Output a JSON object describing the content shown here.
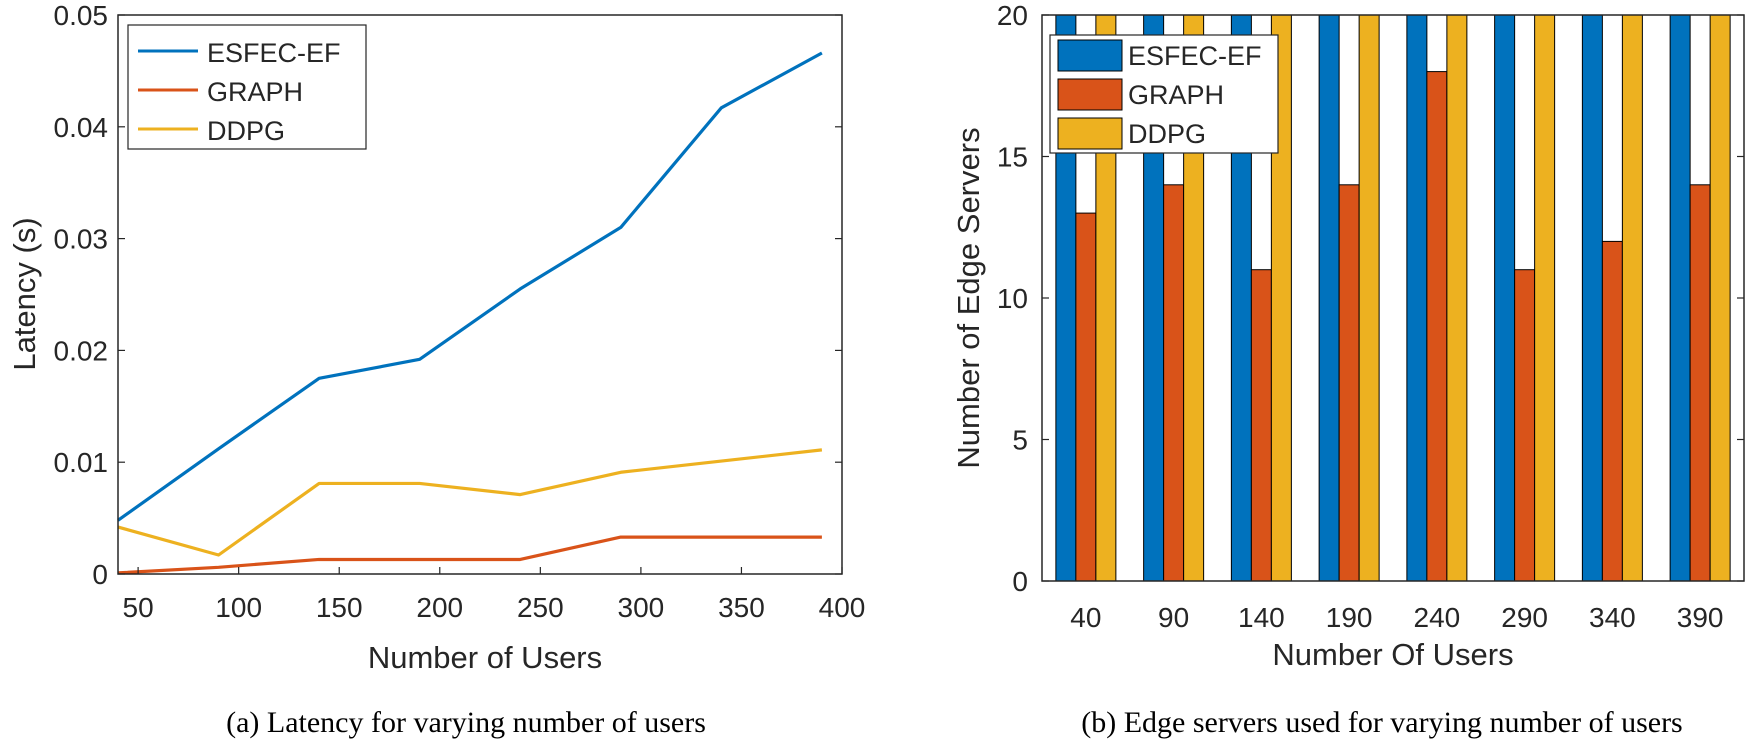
{
  "charts": [
    {
      "type": "line",
      "caption": "(a) Latency for varying number of users",
      "xlabel": "Number of Users",
      "ylabel": "Latency (s)",
      "xlim": [
        40,
        400
      ],
      "ylim": [
        0,
        0.05
      ],
      "x_ticks": [
        "50",
        "100",
        "150",
        "200",
        "250",
        "300",
        "350",
        "400"
      ],
      "y_ticks": [
        "0",
        "0.01",
        "0.02",
        "0.03",
        "0.04",
        "0.05"
      ],
      "x": [
        40,
        90,
        140,
        190,
        240,
        290,
        340,
        390
      ],
      "series": [
        {
          "name": "ESFEC-EF",
          "color": "#0072bd",
          "values": [
            0.0048,
            0.0112,
            0.0175,
            0.0192,
            0.0255,
            0.031,
            0.0417,
            0.0466
          ]
        },
        {
          "name": "GRAPH",
          "color": "#d95319",
          "values": [
            0.0001,
            0.0006,
            0.0013,
            0.0013,
            0.0013,
            0.0033,
            0.0033,
            0.0033
          ]
        },
        {
          "name": "DDPG",
          "color": "#edb120",
          "values": [
            0.0042,
            0.0017,
            0.0081,
            0.0081,
            0.0071,
            0.0091,
            0.0101,
            0.0111
          ]
        }
      ],
      "legend_position": "top-left"
    },
    {
      "type": "bar",
      "caption": "(b) Edge servers used for varying number of users",
      "xlabel": "Number Of Users",
      "ylabel": "Number of Edge Servers",
      "ylim": [
        0,
        20
      ],
      "y_ticks": [
        "0",
        "5",
        "10",
        "15",
        "20"
      ],
      "categories": [
        "40",
        "90",
        "140",
        "190",
        "240",
        "290",
        "340",
        "390"
      ],
      "series": [
        {
          "name": "ESFEC-EF",
          "color": "#0072bd",
          "values": [
            20,
            20,
            20,
            20,
            20,
            20,
            20,
            20
          ]
        },
        {
          "name": "GRAPH",
          "color": "#d95319",
          "values": [
            13,
            14,
            11,
            14,
            18,
            11,
            12,
            14
          ]
        },
        {
          "name": "DDPG",
          "color": "#edb120",
          "values": [
            20,
            20,
            20,
            20,
            20,
            20,
            20,
            20
          ]
        }
      ],
      "legend_position": "top-left"
    }
  ]
}
